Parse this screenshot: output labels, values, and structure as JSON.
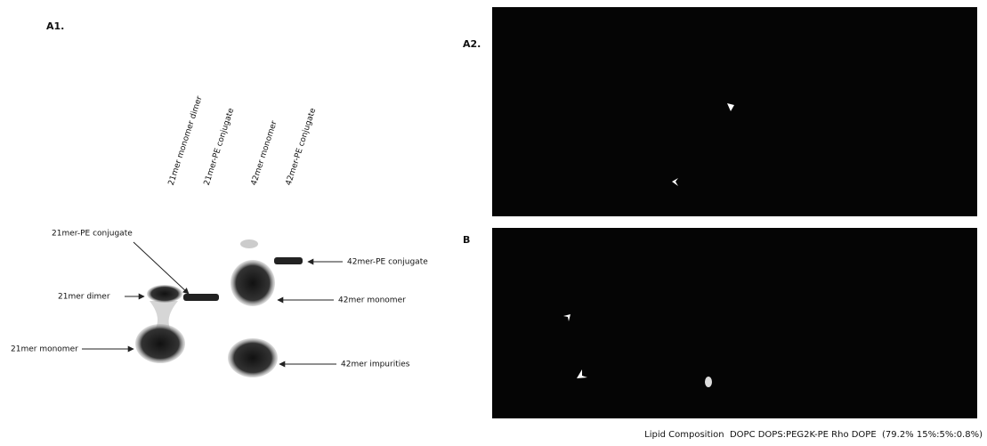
{
  "panel_a1": {
    "label": "A1.",
    "lanes": [
      "21mer monomer dimer",
      "21mer-PE conjugate",
      "42mer monomer",
      "42mer-PE conjugate"
    ],
    "annotations": [
      "21mer-PE conjugate",
      "42mer-PE conjugate",
      "21mer dimer",
      "42mer monomer",
      "21mer monomer",
      "42mer impurities"
    ]
  },
  "panel_a2": {
    "label": "A2."
  },
  "panel_b": {
    "label": "B"
  },
  "caption": "Lipid Composition  DOPC DOPS:PEG2K-PE Rho DOPE  (79.2% 15%:5%:0.8%)"
}
